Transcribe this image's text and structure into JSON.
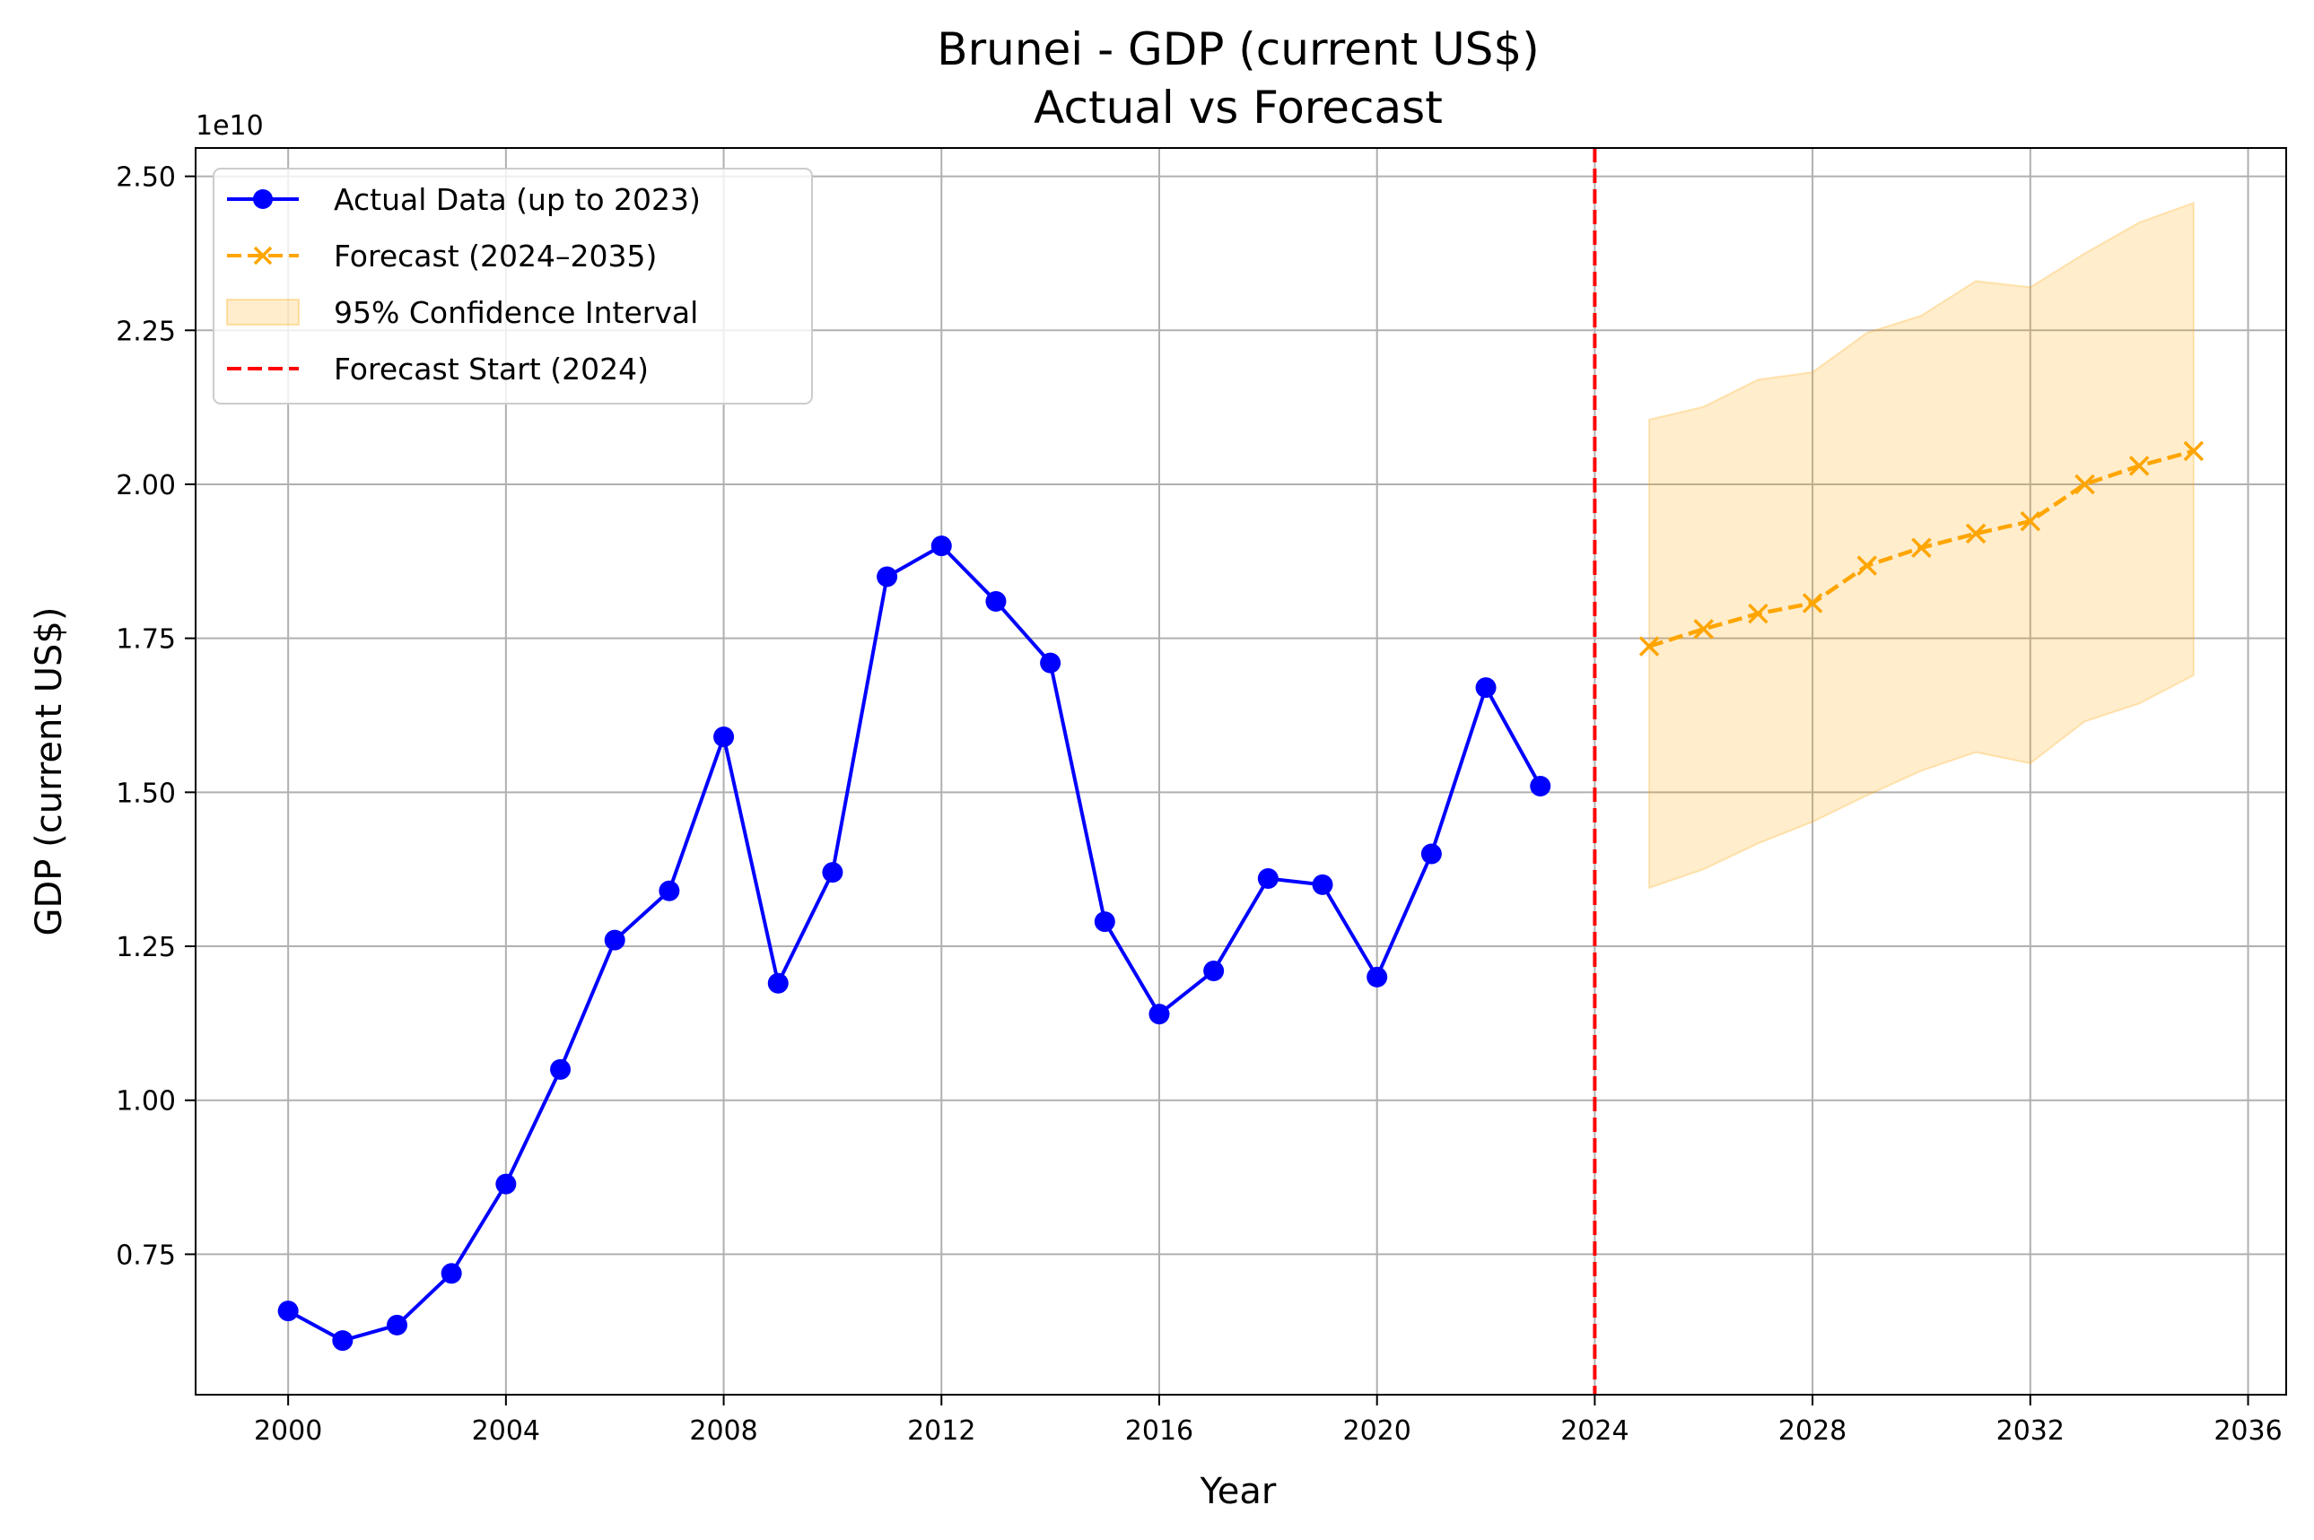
{
  "chart_data": {
    "type": "line",
    "title": "Brunei - GDP (current US$)",
    "subtitle": "Actual vs Forecast",
    "xlabel": "Year",
    "ylabel": "GDP (current US$)",
    "y_offset_label": "1e10",
    "xlim": [
      1998.3,
      2036.7
    ],
    "ylim": [
      0.522,
      2.546
    ],
    "y_scale_note": "values in units of 1e10",
    "x_ticks": [
      2000,
      2004,
      2008,
      2012,
      2016,
      2020,
      2024,
      2028,
      2032,
      2036
    ],
    "y_ticks": [
      0.75,
      1.0,
      1.25,
      1.5,
      1.75,
      2.0,
      2.25,
      2.5
    ],
    "y_tick_labels": [
      "0.75",
      "1.00",
      "1.25",
      "1.50",
      "1.75",
      "2.00",
      "2.25",
      "2.50"
    ],
    "grid": true,
    "legend_position": "top-left",
    "series": [
      {
        "name": "Actual Data (up to 2023)",
        "color": "#0000ff",
        "style": "solid-circle",
        "x": [
          2000,
          2001,
          2002,
          2003,
          2004,
          2005,
          2006,
          2007,
          2008,
          2009,
          2010,
          2011,
          2012,
          2013,
          2014,
          2015,
          2016,
          2017,
          2018,
          2019,
          2020,
          2021,
          2022,
          2023
        ],
        "y": [
          0.658,
          0.61,
          0.635,
          0.719,
          0.864,
          1.05,
          1.26,
          1.34,
          1.59,
          1.19,
          1.37,
          1.85,
          1.9,
          1.81,
          1.71,
          1.29,
          1.14,
          1.21,
          1.36,
          1.35,
          1.2,
          1.4,
          1.67,
          1.51
        ]
      },
      {
        "name": "Forecast (2024–2035)",
        "color": "#ffa500",
        "style": "dashed-x",
        "x": [
          2025,
          2026,
          2027,
          2028,
          2029,
          2030,
          2031,
          2032,
          2033,
          2034,
          2035
        ],
        "y": [
          1.737,
          1.765,
          1.79,
          1.807,
          1.868,
          1.897,
          1.92,
          1.94,
          2.0,
          2.03,
          2.054
        ]
      }
    ],
    "confidence_interval": {
      "name": "95% Confidence Interval",
      "color": "#ffa500",
      "opacity": 0.2,
      "x": [
        2025,
        2026,
        2027,
        2028,
        2029,
        2030,
        2031,
        2032,
        2033,
        2034,
        2035
      ],
      "lower": [
        1.345,
        1.375,
        1.417,
        1.452,
        1.495,
        1.535,
        1.565,
        1.547,
        1.615,
        1.644,
        1.69
      ],
      "upper": [
        2.105,
        2.126,
        2.17,
        2.182,
        2.246,
        2.274,
        2.33,
        2.32,
        2.375,
        2.425,
        2.457
      ]
    },
    "vertical_line": {
      "name": "Forecast Start (2024)",
      "x": 2024,
      "color": "#ff0000",
      "style": "dashed"
    }
  }
}
